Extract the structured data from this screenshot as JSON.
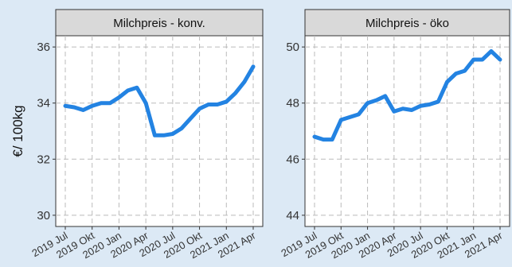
{
  "chart_data": [
    {
      "type": "line",
      "title": "Milchpreis - konv.",
      "y_label": "€/ 100kg",
      "categories": [
        "2019 Jul",
        null,
        null,
        "2019 Okt",
        null,
        null,
        "2020 Jan",
        null,
        null,
        "2020 Apr",
        null,
        null,
        "2020 Jul",
        null,
        null,
        "2020 Okt",
        null,
        null,
        "2021 Jan",
        null,
        null,
        "2021 Apr"
      ],
      "values": [
        33.9,
        33.85,
        33.75,
        33.9,
        34.0,
        34.0,
        34.2,
        34.45,
        34.55,
        34.0,
        32.85,
        32.85,
        32.9,
        33.1,
        33.45,
        33.8,
        33.95,
        33.95,
        34.05,
        34.35,
        34.75,
        35.3
      ],
      "color": "#2383e2",
      "ylim": [
        29.6,
        36.4
      ],
      "yticks": [
        30,
        32,
        34,
        36
      ],
      "grid": true
    },
    {
      "type": "line",
      "title": "Milchpreis - öko",
      "categories": [
        "2019 Jul",
        null,
        null,
        "2019 Okt",
        null,
        null,
        "2020 Jan",
        null,
        null,
        "2020 Apr",
        null,
        null,
        "2020 Jul",
        null,
        null,
        "2020 Okt",
        null,
        null,
        "2021 Jan",
        null,
        null,
        "2021 Apr"
      ],
      "values": [
        46.8,
        46.7,
        46.7,
        47.4,
        47.5,
        47.6,
        48.0,
        48.1,
        48.25,
        47.7,
        47.8,
        47.75,
        47.9,
        47.95,
        48.05,
        48.75,
        49.05,
        49.15,
        49.55,
        49.55,
        49.85,
        49.55
      ],
      "color": "#2383e2",
      "ylim": [
        43.6,
        50.4
      ],
      "yticks": [
        44,
        46,
        48,
        50
      ],
      "grid": true
    }
  ]
}
